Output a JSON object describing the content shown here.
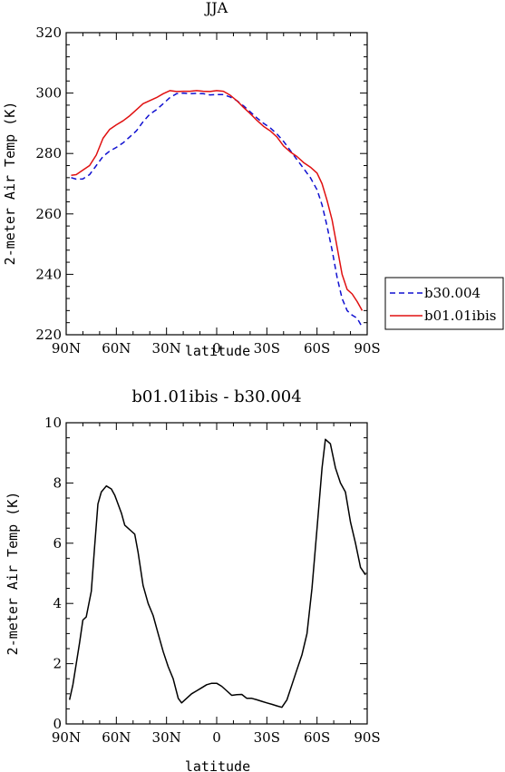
{
  "chart_data": [
    {
      "type": "line",
      "title": "JJA",
      "xlabel": "latitude",
      "ylabel": "2-meter Air Temp (K)",
      "xticks": [
        {
          "v": 90,
          "label": "90N"
        },
        {
          "v": 60,
          "label": "60N"
        },
        {
          "v": 30,
          "label": "30N"
        },
        {
          "v": 0,
          "label": "0"
        },
        {
          "v": -30,
          "label": "30S"
        },
        {
          "v": -60,
          "label": "60S"
        },
        {
          "v": -90,
          "label": "90S"
        }
      ],
      "xlim": [
        90,
        -90
      ],
      "ylim": [
        220,
        320
      ],
      "yticks": [
        220,
        240,
        260,
        280,
        300,
        320
      ],
      "legend_position": "right",
      "series": [
        {
          "name": "b30.004",
          "color": "#1010d0",
          "style": "dashed",
          "x": [
            87,
            84,
            80,
            76,
            72,
            68,
            64,
            60,
            56,
            52,
            48,
            44,
            40,
            36,
            32,
            28,
            24,
            20,
            16,
            12,
            8,
            4,
            0,
            -4,
            -8,
            -12,
            -16,
            -20,
            -24,
            -28,
            -32,
            -36,
            -40,
            -44,
            -48,
            -52,
            -56,
            -60,
            -63,
            -66,
            -69,
            -72,
            -75,
            -78,
            -81,
            -84,
            -87
          ],
          "y": [
            272.0,
            271.5,
            271.6,
            273.0,
            276.0,
            279.0,
            280.8,
            282.0,
            283.5,
            285.5,
            287.5,
            290.5,
            293.0,
            294.5,
            296.5,
            298.5,
            299.8,
            300.0,
            299.8,
            299.9,
            299.8,
            299.4,
            299.5,
            299.5,
            298.7,
            297.5,
            295.8,
            293.8,
            291.8,
            290.0,
            288.5,
            286.5,
            284.0,
            281.0,
            278.0,
            275.0,
            272.0,
            268.0,
            263.0,
            256.0,
            248.0,
            239.0,
            232.0,
            228.0,
            226.5,
            225.5,
            222.5
          ]
        },
        {
          "name": "b01.01ibis",
          "color": "#e01010",
          "style": "solid",
          "x": [
            87,
            84,
            80,
            76,
            72,
            68,
            64,
            60,
            56,
            52,
            48,
            44,
            40,
            36,
            32,
            28,
            24,
            20,
            16,
            12,
            8,
            4,
            0,
            -4,
            -8,
            -12,
            -16,
            -20,
            -24,
            -28,
            -32,
            -36,
            -40,
            -44,
            -48,
            -52,
            -56,
            -60,
            -63,
            -66,
            -69,
            -72,
            -75,
            -78,
            -81,
            -84,
            -87
          ],
          "y": [
            272.8,
            273.0,
            274.5,
            276.0,
            279.5,
            285.0,
            288.0,
            289.5,
            290.8,
            292.5,
            294.5,
            296.5,
            297.5,
            298.5,
            299.8,
            300.8,
            300.5,
            300.6,
            300.6,
            300.8,
            300.6,
            300.5,
            300.8,
            300.6,
            299.3,
            297.5,
            295.3,
            293.2,
            291.0,
            289.0,
            287.5,
            285.5,
            282.5,
            280.5,
            279.0,
            277.0,
            275.5,
            273.5,
            270.0,
            264.5,
            258.0,
            249.0,
            240.0,
            235.0,
            233.5,
            231.0,
            228.0
          ]
        }
      ]
    },
    {
      "type": "line",
      "title": "b01.01ibis - b30.004",
      "xlabel": "latitude",
      "ylabel": "2-meter Air Temp (K)",
      "xticks": [
        {
          "v": 90,
          "label": "90N"
        },
        {
          "v": 60,
          "label": "60N"
        },
        {
          "v": 30,
          "label": "30N"
        },
        {
          "v": 0,
          "label": "0"
        },
        {
          "v": -30,
          "label": "30S"
        },
        {
          "v": -60,
          "label": "60S"
        },
        {
          "v": -90,
          "label": "90S"
        }
      ],
      "xlim": [
        90,
        -90
      ],
      "ylim": [
        0,
        10
      ],
      "yticks": [
        0,
        2,
        4,
        6,
        8,
        10
      ],
      "series": [
        {
          "color": "#000000",
          "style": "solid",
          "x": [
            88,
            86,
            84,
            82,
            80,
            78,
            75,
            73,
            71,
            69,
            66,
            63,
            61,
            59,
            57,
            55,
            53,
            51,
            49,
            47,
            44,
            41,
            38,
            35,
            32,
            29,
            26,
            23,
            21,
            18,
            15,
            12,
            9,
            6,
            3,
            0,
            -3,
            -6,
            -9,
            -12,
            -15,
            -18,
            -21,
            -24,
            -27,
            -30,
            -33,
            -36,
            -39,
            -42,
            -45,
            -48,
            -51,
            -54,
            -57,
            -60,
            -63,
            -65,
            -68,
            -71,
            -74,
            -77,
            -80,
            -83,
            -86,
            -89
          ],
          "y": [
            0.8,
            1.3,
            2.0,
            2.7,
            3.45,
            3.55,
            4.4,
            5.9,
            7.3,
            7.7,
            7.9,
            7.8,
            7.6,
            7.3,
            7.0,
            6.6,
            6.5,
            6.4,
            6.3,
            5.7,
            4.6,
            4.0,
            3.6,
            3.0,
            2.4,
            1.9,
            1.5,
            0.85,
            0.7,
            0.85,
            1.0,
            1.1,
            1.2,
            1.3,
            1.35,
            1.35,
            1.25,
            1.1,
            0.95,
            0.97,
            0.98,
            0.85,
            0.85,
            0.8,
            0.75,
            0.7,
            0.65,
            0.6,
            0.55,
            0.8,
            1.3,
            1.8,
            2.3,
            3.0,
            4.5,
            6.5,
            8.5,
            9.45,
            9.3,
            8.5,
            8.0,
            7.7,
            6.7,
            6.0,
            5.2,
            4.95
          ]
        }
      ]
    }
  ]
}
